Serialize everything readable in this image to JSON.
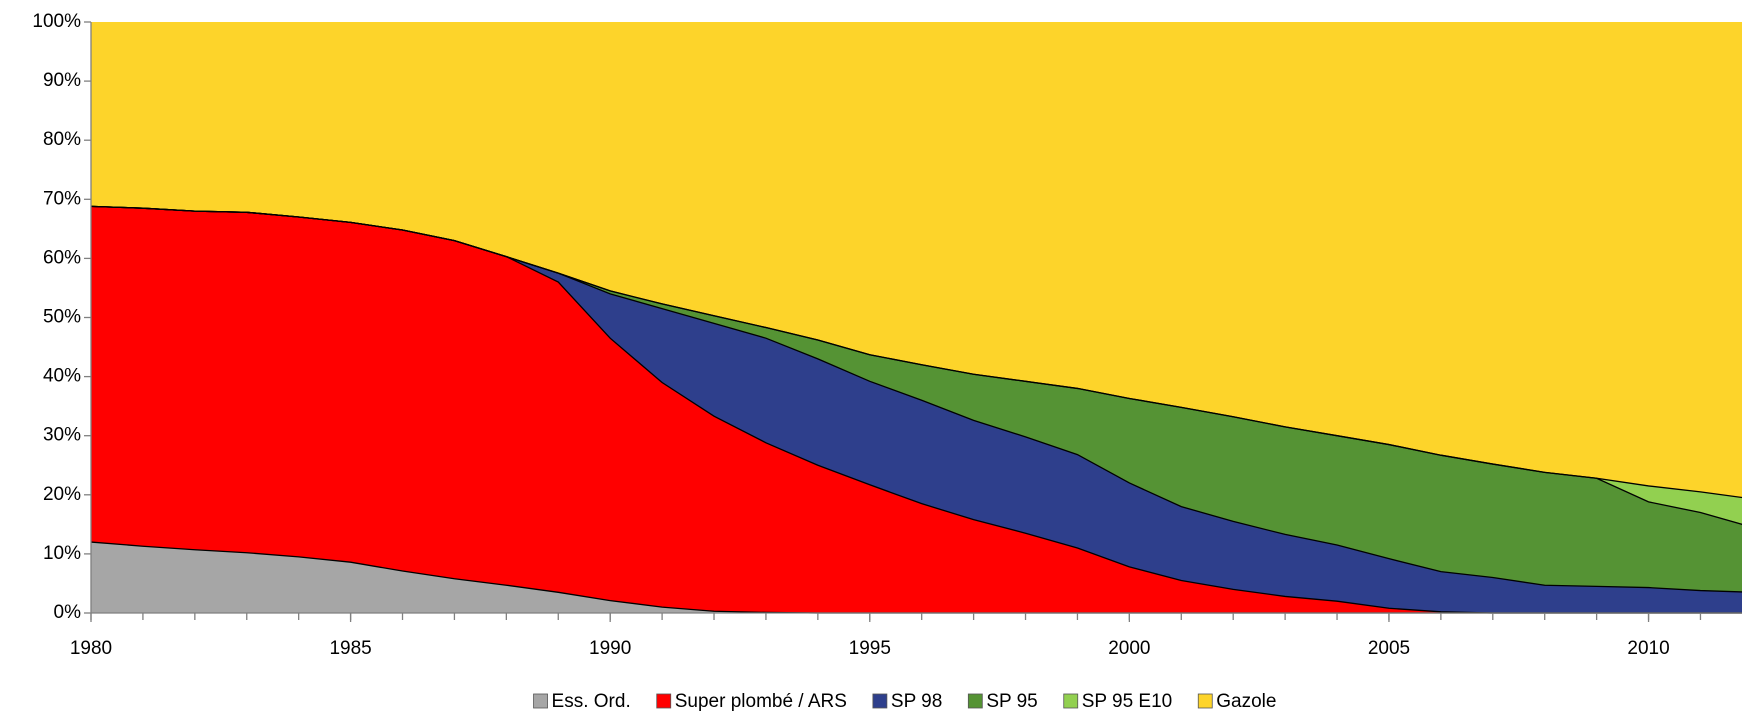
{
  "chart_data": {
    "type": "stacked_area_100",
    "x": [
      1980,
      1981,
      1982,
      1983,
      1984,
      1985,
      1986,
      1987,
      1988,
      1989,
      1990,
      1991,
      1992,
      1993,
      1994,
      1995,
      1996,
      1997,
      1998,
      1999,
      2000,
      2001,
      2002,
      2003,
      2004,
      2005,
      2006,
      2007,
      2008,
      2009,
      2010,
      2011,
      2012
    ],
    "xlim": [
      1980,
      2011.8
    ],
    "xticks": [
      1980,
      1985,
      1990,
      1995,
      2000,
      2005,
      2010
    ],
    "ylim": [
      0,
      100
    ],
    "yticks": [
      {
        "value": 0,
        "label": "0%"
      },
      {
        "value": 10,
        "label": "10%"
      },
      {
        "value": 20,
        "label": "20%"
      },
      {
        "value": 30,
        "label": "30%"
      },
      {
        "value": 40,
        "label": "40%"
      },
      {
        "value": 50,
        "label": "50%"
      },
      {
        "value": 60,
        "label": "60%"
      },
      {
        "value": 70,
        "label": "70%"
      },
      {
        "value": 80,
        "label": "80%"
      },
      {
        "value": 90,
        "label": "90%"
      },
      {
        "value": 100,
        "label": "100%"
      }
    ],
    "legend": "bottom",
    "series": [
      {
        "name": "Ess. Ord.",
        "color": "#a6a6a6",
        "values": [
          12,
          11.3,
          10.7,
          10.2,
          9.5,
          8.6,
          7.1,
          5.8,
          4.7,
          3.5,
          2.1,
          1,
          0.3,
          0.1,
          0,
          0,
          0,
          0,
          0,
          0,
          0,
          0,
          0,
          0,
          0,
          0,
          0,
          0,
          0,
          0,
          0,
          0,
          0
        ]
      },
      {
        "name": "Super plombé / ARS",
        "color": "#ff0000",
        "values": [
          56.8,
          57.2,
          57.3,
          57.6,
          57.5,
          57.5,
          57.7,
          57.2,
          55.6,
          52.5,
          44.4,
          38,
          33,
          28.7,
          25,
          21.7,
          18.5,
          15.8,
          13.5,
          11,
          7.8,
          5.5,
          4,
          2.8,
          2,
          0.8,
          0.2,
          0,
          0,
          0,
          0,
          0,
          0
        ]
      },
      {
        "name": "SP 98",
        "color": "#2e3f8c",
        "values": [
          0,
          0,
          0,
          0,
          0,
          0,
          0,
          0,
          0,
          1.5,
          7.5,
          12.5,
          15.7,
          17.7,
          18,
          17.5,
          17.5,
          16.8,
          16.3,
          15.8,
          14.2,
          12.5,
          11.5,
          10.5,
          9.5,
          8.4,
          6.8,
          6,
          4.7,
          4.5,
          4.3,
          3.8,
          3.5
        ]
      },
      {
        "name": "SP 95",
        "color": "#559334",
        "values": [
          0,
          0,
          0,
          0,
          0,
          0,
          0,
          0,
          0,
          0,
          0.5,
          0.8,
          1.3,
          1.8,
          3.2,
          4.5,
          6,
          7.8,
          9.4,
          11.2,
          14.3,
          16.8,
          17.7,
          18.2,
          18.5,
          19.3,
          19.7,
          19.2,
          19.1,
          18.3,
          14.5,
          13.2,
          11
        ]
      },
      {
        "name": "SP 95 E10",
        "color": "#92d050",
        "values": [
          0,
          0,
          0,
          0,
          0,
          0,
          0,
          0,
          0,
          0,
          0,
          0,
          0,
          0,
          0,
          0,
          0,
          0,
          0,
          0,
          0,
          0,
          0,
          0,
          0,
          0,
          0,
          0,
          0,
          0,
          2.7,
          3.5,
          4.8
        ]
      },
      {
        "name": "Gazole",
        "color": "#fdd42a",
        "values": [
          31.2,
          31.5,
          32,
          32.2,
          33,
          33.9,
          35.2,
          37,
          39.7,
          42.5,
          45.5,
          47.7,
          49.7,
          51.7,
          53.8,
          56.3,
          58,
          59.6,
          60.8,
          62,
          63.7,
          65.2,
          66.8,
          68.5,
          70,
          71.5,
          73.3,
          74.8,
          76.2,
          77.2,
          78.5,
          79.5,
          80.7
        ]
      }
    ]
  }
}
